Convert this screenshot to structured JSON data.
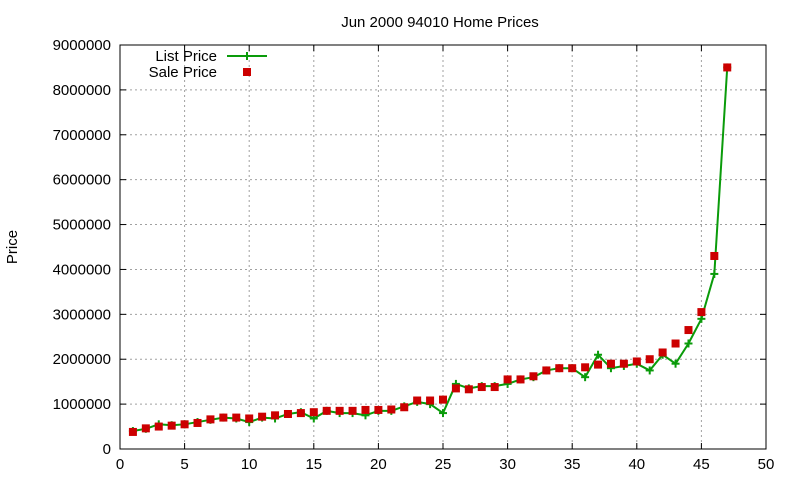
{
  "chart_data": {
    "type": "line",
    "title": "Jun 2000 94010 Home Prices",
    "xlabel": "",
    "ylabel": "Price",
    "xlim": [
      0,
      50
    ],
    "ylim": [
      0,
      9000000
    ],
    "xticks": [
      0,
      5,
      10,
      15,
      20,
      25,
      30,
      35,
      40,
      45,
      50
    ],
    "yticks": [
      0,
      1000000,
      2000000,
      3000000,
      4000000,
      5000000,
      6000000,
      7000000,
      8000000,
      9000000
    ],
    "grid": true,
    "legend_position": "top-left",
    "series": [
      {
        "name": "List Price",
        "style": "line-with-plus-markers",
        "color": "#0a9b0a",
        "x": [
          1,
          2,
          3,
          4,
          5,
          6,
          7,
          8,
          9,
          10,
          11,
          12,
          13,
          14,
          15,
          16,
          17,
          18,
          19,
          20,
          21,
          22,
          23,
          24,
          25,
          26,
          27,
          28,
          29,
          30,
          31,
          32,
          33,
          34,
          35,
          36,
          37,
          38,
          39,
          40,
          41,
          42,
          43,
          44,
          45,
          46,
          47
        ],
        "values": [
          400000,
          450000,
          550000,
          530000,
          550000,
          600000,
          650000,
          700000,
          680000,
          600000,
          700000,
          680000,
          780000,
          820000,
          680000,
          850000,
          800000,
          800000,
          750000,
          850000,
          850000,
          950000,
          1050000,
          1000000,
          800000,
          1450000,
          1350000,
          1400000,
          1400000,
          1450000,
          1550000,
          1600000,
          1750000,
          1800000,
          1800000,
          1600000,
          2100000,
          1800000,
          1850000,
          1900000,
          1750000,
          2100000,
          1900000,
          2350000,
          2900000,
          3900000,
          8500000
        ]
      },
      {
        "name": "Sale Price",
        "style": "square-markers",
        "color": "#cc0000",
        "x": [
          1,
          2,
          3,
          4,
          5,
          6,
          7,
          8,
          9,
          10,
          11,
          12,
          13,
          14,
          15,
          16,
          17,
          18,
          19,
          20,
          21,
          22,
          23,
          24,
          25,
          26,
          27,
          28,
          29,
          30,
          31,
          32,
          33,
          34,
          35,
          36,
          37,
          38,
          39,
          40,
          41,
          42,
          43,
          44,
          45,
          46,
          47
        ],
        "values": [
          380000,
          460000,
          500000,
          520000,
          550000,
          580000,
          660000,
          700000,
          700000,
          680000,
          720000,
          750000,
          780000,
          800000,
          820000,
          850000,
          850000,
          850000,
          870000,
          870000,
          880000,
          930000,
          1080000,
          1080000,
          1100000,
          1350000,
          1330000,
          1380000,
          1380000,
          1550000,
          1550000,
          1620000,
          1750000,
          1800000,
          1800000,
          1820000,
          1880000,
          1900000,
          1900000,
          1950000,
          2000000,
          2150000,
          2350000,
          2650000,
          3050000,
          4300000,
          8500000
        ]
      }
    ]
  }
}
